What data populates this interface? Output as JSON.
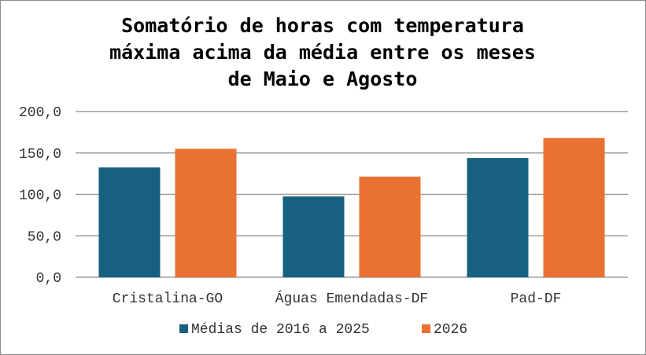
{
  "chart_data": {
    "type": "bar",
    "title_lines": [
      "Somatório de horas com temperatura",
      "máxima acima da média entre os meses",
      "de Maio e Agosto"
    ],
    "categories": [
      "Cristalina-GO",
      "Águas Emendadas-DF",
      "Pad-DF"
    ],
    "series": [
      {
        "name": "Médias de 2016 a 2025",
        "color": "#17607f",
        "values": [
          132.5,
          97.5,
          144.0
        ]
      },
      {
        "name": "2026",
        "color": "#e97132",
        "values": [
          155.0,
          121.5,
          168.0
        ]
      }
    ],
    "ylim": [
      0,
      200
    ],
    "yticks": [
      "0,0",
      "50,0",
      "100,0",
      "150,0",
      "200,0"
    ],
    "ytick_values": [
      0,
      50,
      100,
      150,
      200
    ],
    "grid": true,
    "legend_position": "bottom",
    "xlabel": "",
    "ylabel": ""
  }
}
